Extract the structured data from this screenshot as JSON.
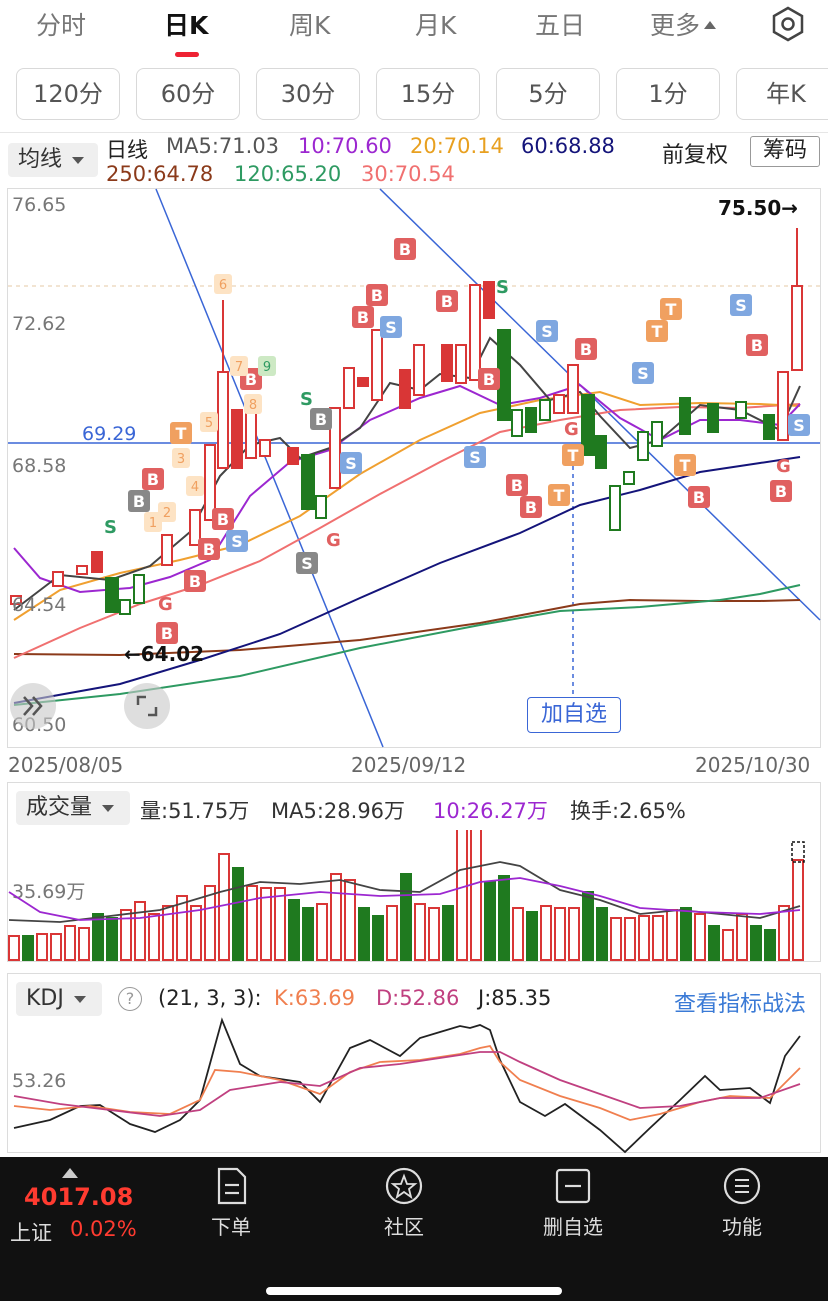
{
  "tabs": [
    "分时",
    "日K",
    "周K",
    "月K",
    "五日",
    "更多"
  ],
  "periods": [
    "120分",
    "60分",
    "30分",
    "15分",
    "5分",
    "1分",
    "年K"
  ],
  "ma_header": {
    "dropdown": "均线",
    "label": "日线",
    "ma5": "MA5:71.03",
    "ma10": "10:70.60",
    "ma20": "20:70.14",
    "ma60": "60:68.88",
    "ma250": "250:64.78",
    "ma120": "120:65.20",
    "ma30": "30:70.54",
    "adjust": "前复权",
    "chip_button": "筹码"
  },
  "colors": {
    "up": "#d93636",
    "down": "#1f7a1f",
    "ma5": "#444444",
    "ma10": "#9c27d0",
    "ma20": "#f0a030",
    "ma60": "#14147a",
    "ma250": "#8b3a1a",
    "ma120": "#2e9a62",
    "ma30": "#f08080",
    "blue": "#3a66d6"
  },
  "price_axis": {
    "top": "76.65",
    "mid1": "72.62",
    "mid2": "68.58",
    "low": "64.54",
    "bottom": "60.50",
    "hline": "69.29",
    "high_marker": "75.50→",
    "low_marker": "←64.02"
  },
  "dates": [
    "2025/08/05",
    "2025/09/12",
    "2025/10/30"
  ],
  "add_watchlist": "加自选",
  "volume": {
    "dropdown": "成交量",
    "vol": "量:51.75万",
    "ma5": "MA5:28.96万",
    "ma10": "10:26.27万",
    "turnover": "换手:2.65%",
    "axis": "35.69万"
  },
  "kdj": {
    "dropdown": "KDJ",
    "help": "?",
    "params": "(21, 3, 3):",
    "k": "K:63.69",
    "d": "D:52.86",
    "j": "J:85.35",
    "link": "查看指标战法",
    "axis": "53.26"
  },
  "index": {
    "value": "4017.08",
    "name": "上证",
    "pct": "0.02%"
  },
  "nav": [
    "下单",
    "社区",
    "删自选",
    "功能"
  ]
}
